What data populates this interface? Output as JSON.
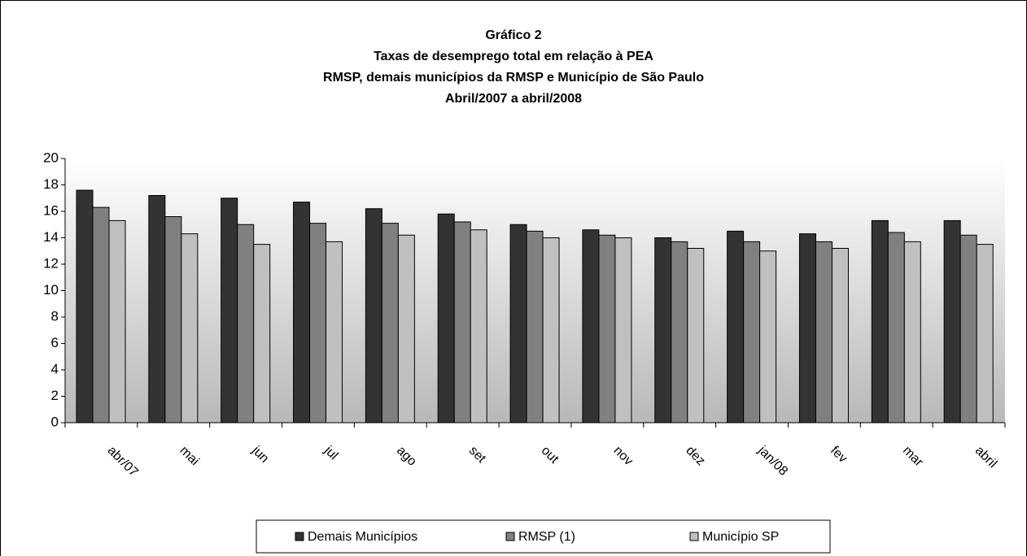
{
  "chart_data": {
    "type": "bar",
    "title": "Gráfico 2",
    "subtitle": [
      "Taxas de desemprego total em relação à PEA",
      "RMSP, demais municípios da RMSP e Município de São Paulo",
      "Abril/2007 a abril/2008"
    ],
    "categories": [
      "abr/07",
      "mai",
      "jun",
      "jul",
      "ago",
      "set",
      "out",
      "nov",
      "dez",
      "jan/08",
      "fev",
      "mar",
      "abril"
    ],
    "series": [
      {
        "name": "Demais Municípios",
        "color": "#333333",
        "values": [
          17.6,
          17.2,
          17.0,
          16.7,
          16.2,
          15.8,
          15.0,
          14.6,
          14.0,
          14.5,
          14.3,
          15.3,
          15.3
        ]
      },
      {
        "name": "RMSP (1)",
        "color": "#808080",
        "values": [
          16.3,
          15.6,
          15.0,
          15.1,
          15.1,
          15.2,
          14.5,
          14.2,
          13.7,
          13.7,
          13.7,
          14.4,
          14.2
        ]
      },
      {
        "name": "Município SP",
        "color": "#c0c0c0",
        "values": [
          15.3,
          14.3,
          13.5,
          13.7,
          14.2,
          14.6,
          14.0,
          14.0,
          13.2,
          13.0,
          13.2,
          13.7,
          13.5
        ]
      }
    ],
    "ylim": [
      0,
      20
    ],
    "yticks": [
      0,
      2,
      4,
      6,
      8,
      10,
      12,
      14,
      16,
      18,
      20
    ],
    "legend": "bottom"
  }
}
